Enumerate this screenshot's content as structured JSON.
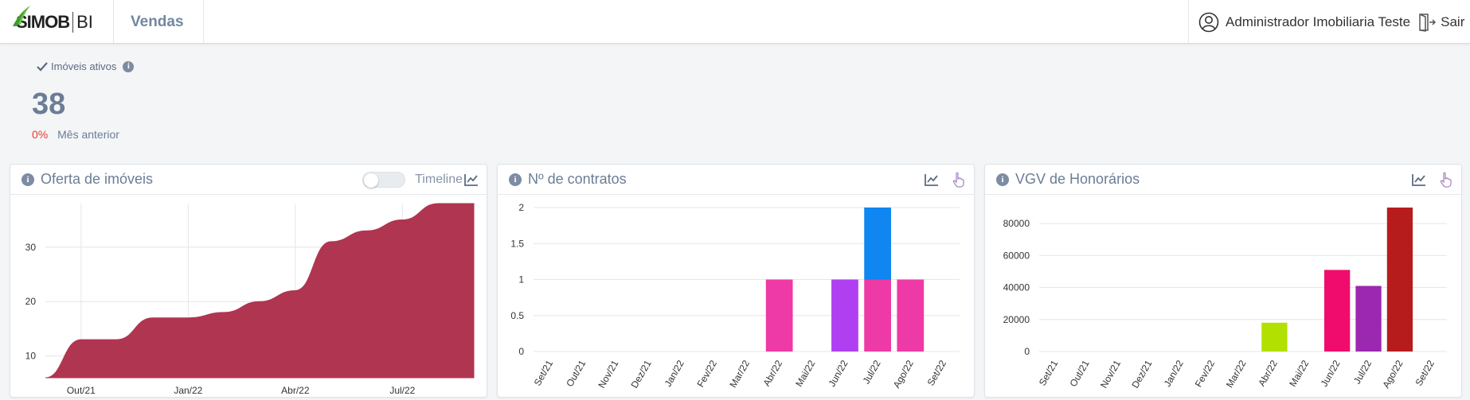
{
  "header": {
    "logo_text": "SIMOB",
    "logo_suffix": "BI",
    "page_title": "Vendas",
    "user_name": "Administrador Imobiliaria Teste",
    "logout_label": "Sair"
  },
  "kpi": {
    "label": "Imóveis ativos",
    "value": "38",
    "change": "0%",
    "change_label": "Mês anterior"
  },
  "cards": {
    "offer": {
      "title": "Oferta de imóveis",
      "toggle_label": "Timeline",
      "toggle_on": false
    },
    "contracts": {
      "title": "Nº de contratos"
    },
    "vgv": {
      "title": "VGV de Honorários"
    }
  },
  "chart_data": [
    {
      "type": "area",
      "title": "Oferta de imóveis",
      "x": [
        "Set/21",
        "Out/21",
        "Nov/21",
        "Dez/21",
        "Jan/22",
        "Fev/22",
        "Mar/22",
        "Abr/22",
        "Mai/22",
        "Jun/22",
        "Jul/22",
        "Ago/22",
        "Set/22"
      ],
      "values": [
        6,
        13,
        13,
        17,
        17,
        18,
        20,
        22,
        31,
        33,
        35,
        38,
        38
      ],
      "x_tick_labels": [
        "Out/21",
        "Jan/22",
        "Abr/22",
        "Jul/22"
      ],
      "y_ticks": [
        10,
        20,
        30
      ],
      "ylim": [
        6,
        38
      ],
      "color": "#b03551",
      "grid": true
    },
    {
      "type": "bar",
      "title": "Nº de contratos",
      "categories": [
        "Set/21",
        "Out/21",
        "Nov/21",
        "Dez/21",
        "Jan/22",
        "Fev/22",
        "Mar/22",
        "Abr/22",
        "Mai/22",
        "Jun/22",
        "Jul/22",
        "Ago/22",
        "Set/22"
      ],
      "stacked": true,
      "series": [
        {
          "values": [
            0,
            0,
            0,
            0,
            0,
            0,
            0,
            1,
            0,
            0,
            1,
            1,
            0
          ],
          "color": "#ee3aa6"
        },
        {
          "values": [
            0,
            0,
            0,
            0,
            0,
            0,
            0,
            0,
            0,
            1,
            0,
            0,
            0
          ],
          "color": "#b03ff2"
        },
        {
          "values": [
            0,
            0,
            0,
            0,
            0,
            0,
            0,
            0,
            0,
            0,
            1,
            0,
            0
          ],
          "color": "#0f86f0"
        }
      ],
      "y_ticks": [
        0,
        0.5,
        1,
        1.5,
        2
      ],
      "ylim": [
        0,
        2
      ],
      "grid": true
    },
    {
      "type": "bar",
      "title": "VGV de Honorários",
      "categories": [
        "Set/21",
        "Out/21",
        "Nov/21",
        "Dez/21",
        "Jan/22",
        "Fev/22",
        "Mar/22",
        "Abr/22",
        "Mai/22",
        "Jun/22",
        "Jul/22",
        "Ago/22",
        "Set/22"
      ],
      "values": [
        0,
        0,
        0,
        0,
        0,
        0,
        0,
        18000,
        0,
        51000,
        41000,
        90000,
        0
      ],
      "bar_colors": [
        "",
        "",
        "",
        "",
        "",
        "",
        "",
        "#b2e000",
        "",
        "#ef0c6c",
        "#9c27b0",
        "#b71c1c",
        ""
      ],
      "y_ticks": [
        0,
        20000,
        40000,
        60000,
        80000
      ],
      "ylim": [
        0,
        90000
      ],
      "grid": true
    }
  ]
}
